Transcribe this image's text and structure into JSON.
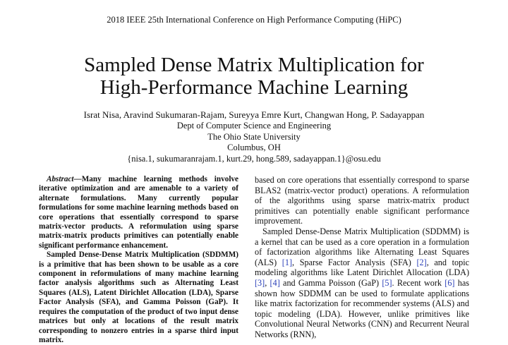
{
  "header": {
    "conference": "2018 IEEE 25th International Conference on High Performance Computing (HiPC)"
  },
  "paper": {
    "title_line1": "Sampled Dense Matrix Multiplication for",
    "title_line2": "High-Performance Machine Learning",
    "authors": "Israt Nisa, Aravind Sukumaran-Rajam, Sureyya Emre Kurt, Changwan Hong, P. Sadayappan",
    "affiliation": [
      "Dept of Computer Science and Engineering",
      "The Ohio State University",
      "Columbus, OH",
      "{nisa.1, sukumaranrajam.1, kurt.29, hong.589, sadayappan.1}@osu.edu"
    ]
  },
  "abstract": {
    "label": "Abstract",
    "dash": "—",
    "p1": "Many machine learning methods involve iterative optimization and are amenable to a variety of alternate formulations. Many currently popular formulations for some machine learning methods based on core operations that essentially correspond to sparse matrix-vector products. A reformulation using sparse matrix-matrix products primitives can potentially enable significant performance enhancement.",
    "p2": "Sampled Dense-Dense Matrix Multiplication (SDDMM) is a primitive that has been shown to be usable as a core component in reformulations of many machine learning factor analysis algorithms such as Alternating Least Squares (ALS), Latent Dirichlet Allocation (LDA), Sparse Factor Analysis (SFA), and Gamma Poisson (GaP). It requires the computation of the product of two input dense matrices but only at locations of the result matrix corresponding to nonzero entries in a sparse third input matrix."
  },
  "right_column": {
    "p1": "based on core operations that essentially correspond to sparse BLAS2 (matrix-vector product) operations. A reformulation of the algorithms using sparse matrix-matrix product primitives can potentially enable significant performance improvement.",
    "p2_a": "Sampled Dense-Dense Matrix Multiplication (SDDMM) is a kernel that can be used as a core operation in a formulation of factorization algorithms like Alternating Least Squares (ALS) ",
    "ref1": "[1]",
    "p2_b": ", Sparse Factor Analysis (SFA) ",
    "ref2": "[2]",
    "p2_c": ", and topic modeling algorithms like Latent Dirichlet Allocation (LDA)",
    "ref3": "[3]",
    "p2_d": ", ",
    "ref4": "[4]",
    "p2_e": " and Gamma Poisson (GaP) ",
    "ref5": "[5]",
    "p2_f": ". Recent work ",
    "ref6": "[6]",
    "p2_g": " has shown how SDDMM can be used to formulate applications like matrix factorization for recommender systems (ALS) and topic modeling (LDA). However, unlike primitives like Convolutional Neural Networks (CNN) and Recurrent Neural Networks (RNN),"
  }
}
